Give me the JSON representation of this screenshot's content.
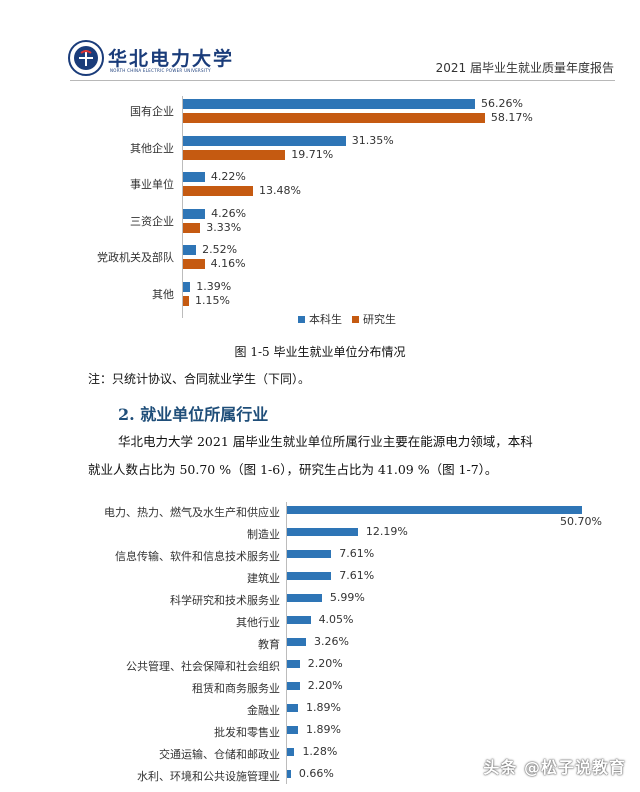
{
  "header": {
    "logo_text": "华北电力大学",
    "logo_sub": "NORTH CHINA ELECTRIC POWER UNIVERSITY",
    "report_title": "2021 届毕业生就业质量年度报告"
  },
  "chart_data": [
    {
      "type": "bar",
      "orientation": "horizontal",
      "categories": [
        "国有企业",
        "其他企业",
        "事业单位",
        "三资企业",
        "党政机关及部队",
        "其他"
      ],
      "series": [
        {
          "name": "本科生",
          "values": [
            56.26,
            31.35,
            4.22,
            4.26,
            2.52,
            1.39
          ],
          "labels": [
            "56.26%",
            "31.35%",
            "4.22%",
            "4.26%",
            "2.52%",
            "1.39%"
          ],
          "color": "#2e75b6"
        },
        {
          "name": "研究生",
          "values": [
            58.17,
            19.71,
            13.48,
            3.33,
            4.16,
            1.15
          ],
          "labels": [
            "58.17%",
            "19.71%",
            "13.48%",
            "3.33%",
            "4.16%",
            "1.15%"
          ],
          "color": "#c55a11"
        }
      ],
      "legend_position": "bottom-right",
      "grid": false
    },
    {
      "type": "bar",
      "orientation": "horizontal",
      "categories": [
        "电力、热力、燃气及水生产和供应业",
        "制造业",
        "信息传输、软件和信息技术服务业",
        "建筑业",
        "科学研究和技术服务业",
        "其他行业",
        "教育",
        "公共管理、社会保障和社会组织",
        "租赁和商务服务业",
        "金融业",
        "批发和零售业",
        "交通运输、仓储和邮政业",
        "水利、环境和公共设施管理业"
      ],
      "series": [
        {
          "values": [
            50.7,
            12.19,
            7.61,
            7.61,
            5.99,
            4.05,
            3.26,
            2.2,
            2.2,
            1.89,
            1.89,
            1.28,
            0.66
          ],
          "labels": [
            "50.70%",
            "12.19%",
            "7.61%",
            "7.61%",
            "5.99%",
            "4.05%",
            "3.26%",
            "2.20%",
            "2.20%",
            "1.89%",
            "1.89%",
            "1.28%",
            "0.66%"
          ],
          "color": "#2e75b6"
        }
      ],
      "grid": false
    }
  ],
  "figure_caption": "图 1-5  毕业生就业单位分布情况",
  "note": "注：只统计协议、合同就业学生（下同）。",
  "section_heading": "2. 就业单位所属行业",
  "paragraph": {
    "line1": "华北电力大学 2021 届毕业生就业单位所属行业主要在能源电力领域，本科",
    "line2": "就业人数占比为 50.70 %（图 1-6），研究生占比为 41.09 %（图 1-7）。"
  },
  "watermark": "头条 @松子说教育"
}
